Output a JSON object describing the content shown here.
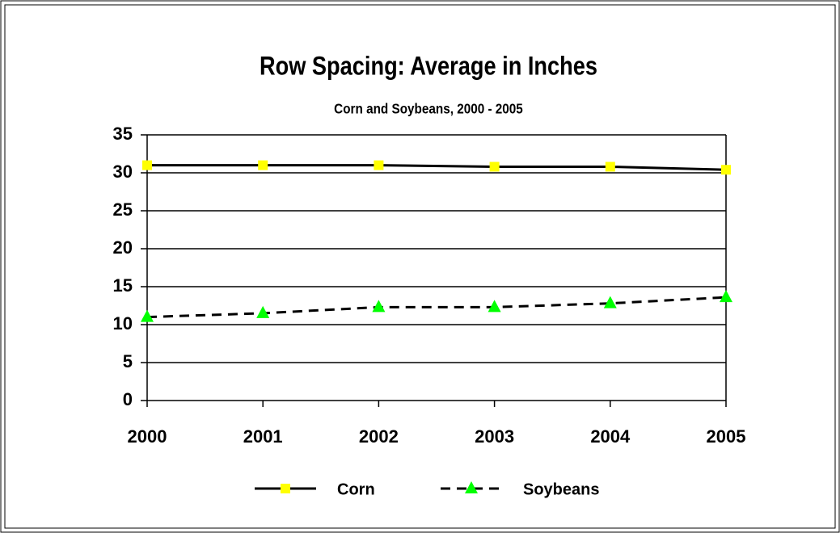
{
  "chart_data": {
    "type": "line",
    "title": "Row Spacing: Average in Inches",
    "subtitle": "Corn and Soybeans, 2000 - 2005",
    "categories": [
      "2000",
      "2001",
      "2002",
      "2003",
      "2004",
      "2005"
    ],
    "series": [
      {
        "name": "Corn",
        "color": "#000000",
        "marker": "square",
        "marker_color": "#ffff00",
        "dash": false,
        "values": [
          31,
          31,
          31,
          30.8,
          30.8,
          30.4
        ]
      },
      {
        "name": "Soybeans",
        "color": "#000000",
        "marker": "triangle",
        "marker_color": "#00ff00",
        "dash": true,
        "values": [
          11,
          11.5,
          12.3,
          12.3,
          12.8,
          13.6
        ]
      }
    ],
    "ylim": [
      0,
      35
    ],
    "yticks": [
      0,
      5,
      10,
      15,
      20,
      25,
      30,
      35
    ],
    "grid": true,
    "legend": "bottom"
  }
}
